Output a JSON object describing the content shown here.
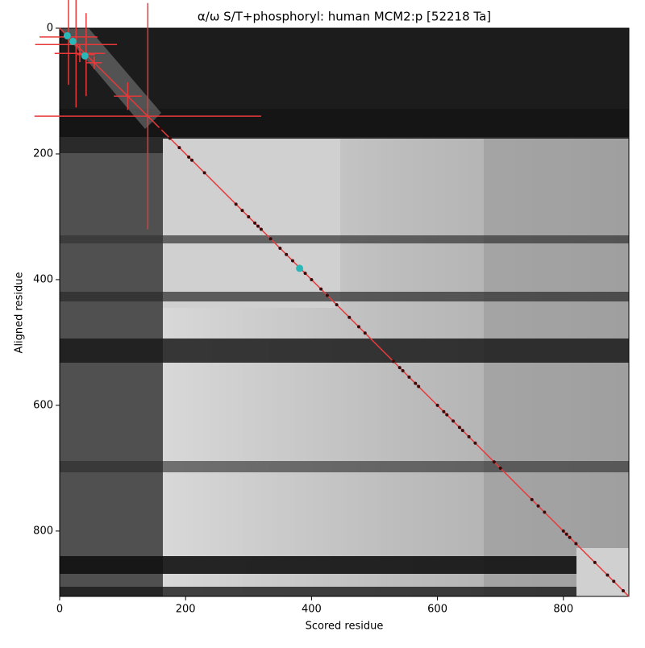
{
  "chart_data": {
    "type": "scatter",
    "title": "α/ω S/T+phosphoryl: human MCM2:p [52218 Ta]",
    "xlabel": "Scored residue",
    "ylabel": "Aligned residue",
    "xlim": [
      0,
      904
    ],
    "ylim": [
      904,
      0
    ],
    "xticks": [
      0,
      200,
      400,
      600,
      800
    ],
    "yticks": [
      0,
      200,
      400,
      600,
      800
    ],
    "fit": {
      "color": "#e8393a",
      "x": [
        0,
        904
      ],
      "y": [
        0,
        904
      ]
    },
    "points": {
      "color": "#3a0a0a",
      "x": [
        160,
        175,
        190,
        205,
        210,
        230,
        280,
        290,
        300,
        310,
        315,
        320,
        335,
        350,
        360,
        370,
        390,
        400,
        415,
        425,
        440,
        460,
        475,
        485,
        530,
        540,
        545,
        555,
        565,
        570,
        600,
        610,
        615,
        625,
        635,
        640,
        650,
        660,
        690,
        700,
        750,
        760,
        770,
        800,
        805,
        810,
        820,
        850,
        870,
        880,
        895
      ],
      "y": [
        160,
        175,
        190,
        205,
        210,
        230,
        280,
        290,
        300,
        310,
        315,
        320,
        335,
        350,
        360,
        370,
        390,
        400,
        415,
        425,
        440,
        460,
        475,
        485,
        530,
        540,
        545,
        555,
        565,
        570,
        600,
        610,
        615,
        625,
        635,
        640,
        650,
        660,
        690,
        700,
        750,
        760,
        770,
        800,
        805,
        810,
        820,
        850,
        870,
        880,
        895
      ]
    },
    "errorbars": {
      "color": "#e8393a",
      "x": [
        14,
        26,
        32,
        42,
        55,
        108,
        140
      ],
      "y": [
        14,
        26,
        40,
        42,
        55,
        108,
        140
      ],
      "xerr": [
        46,
        65,
        40,
        14,
        12,
        22,
        180
      ],
      "yerr": [
        76,
        100,
        14,
        66,
        10,
        22,
        180
      ]
    },
    "highlights": {
      "color": "#2ab7b7",
      "x": [
        12,
        21,
        40,
        381
      ],
      "y": [
        12,
        21,
        44,
        382
      ]
    }
  }
}
